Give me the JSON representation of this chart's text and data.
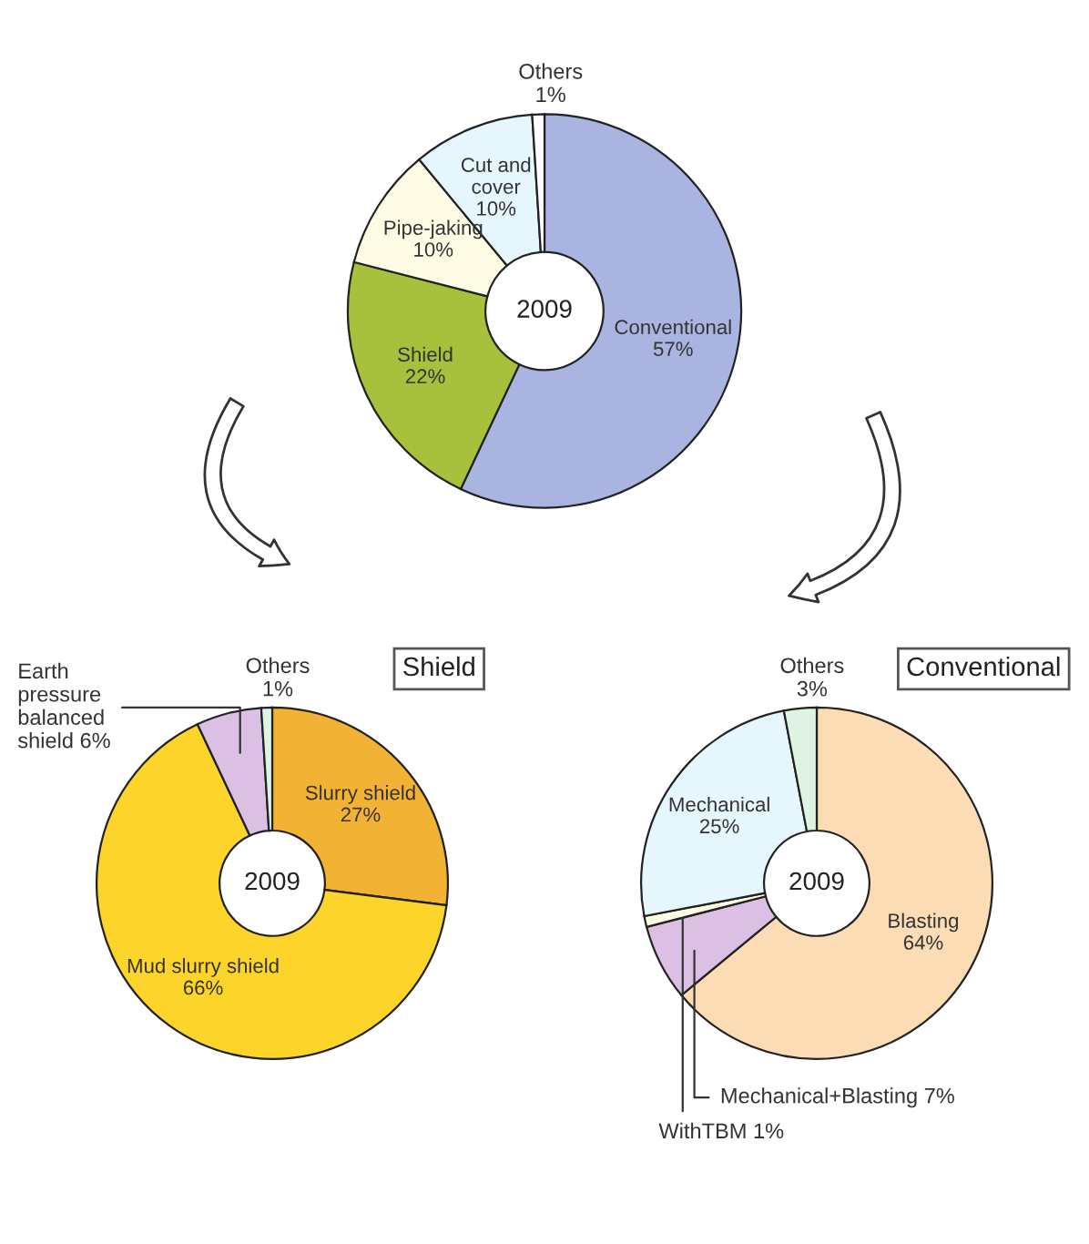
{
  "chart_data": [
    {
      "type": "donut",
      "categories": [
        "Conventional",
        "Shield",
        "Pipe-jaking",
        "Cut and cover",
        "Others"
      ],
      "values": [
        57,
        22,
        10,
        10,
        1
      ],
      "value_labels": [
        "57%",
        "22%",
        "10%",
        "10%",
        "1%"
      ],
      "colors": [
        "#a9b4e0",
        "#a8c13c",
        "#fdfbe3",
        "#e6f6fd",
        "#ffffff"
      ],
      "annotations": [
        "2009"
      ]
    },
    {
      "type": "donut",
      "title": "Shield",
      "categories": [
        "Slurry shield",
        "Mud slurry shield",
        "Earth pressure balanced shield",
        "Others"
      ],
      "values": [
        27,
        66,
        6,
        1
      ],
      "value_labels": [
        "27%",
        "66%",
        "6%",
        "1%"
      ],
      "colors": [
        "#f2b233",
        "#fcd42a",
        "#dcc0e4",
        "#def3e6"
      ],
      "annotations": [
        "2009"
      ]
    },
    {
      "type": "donut",
      "title": "Conventional",
      "categories": [
        "Blasting",
        "Mechanical+Blasting",
        "WithTBM",
        "Mechanical",
        "Others"
      ],
      "values": [
        64,
        7,
        1,
        25,
        3
      ],
      "value_labels": [
        "64%",
        "7%",
        "1%",
        "25%",
        "3%"
      ],
      "colors": [
        "#fbdcb4",
        "#dcc0e4",
        "#fdfbe3",
        "#e6f6fd",
        "#dff3e3"
      ],
      "annotations": [
        "2009"
      ]
    }
  ]
}
